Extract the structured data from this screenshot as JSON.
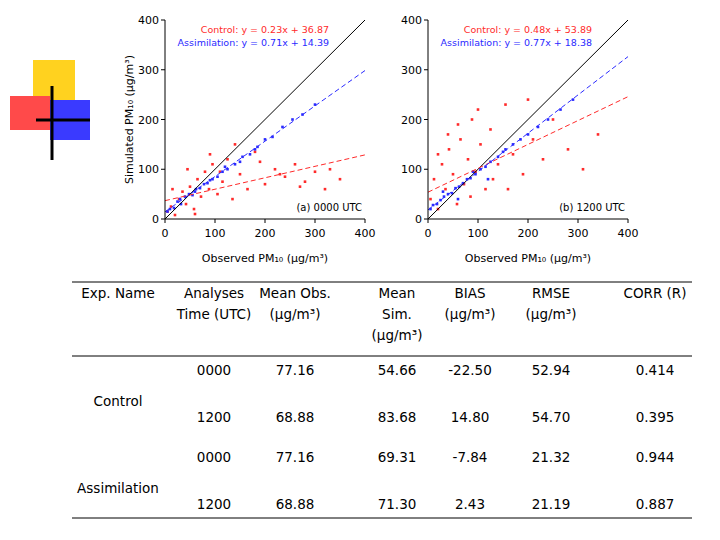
{
  "chart_data": [
    {
      "type": "scatter",
      "x_label": "Observed PM₁₀ (μg/m³)",
      "y_label": "Simulated PM₁₀ (μg/m³)",
      "annotation": "(a) 0000 UTC",
      "xlim": [
        0,
        400
      ],
      "ylim": [
        0,
        400
      ],
      "xticks": [
        0,
        100,
        200,
        300,
        400
      ],
      "yticks": [
        0,
        100,
        200,
        300,
        400
      ],
      "series": [
        {
          "color": "#ff2a2a",
          "marker": "square",
          "x": [
            5,
            12,
            20,
            28,
            35,
            42,
            50,
            58,
            65,
            72,
            80,
            88,
            95,
            105,
            115,
            125,
            135,
            150,
            165,
            180,
            200,
            220,
            240,
            260,
            280,
            300,
            320,
            350,
            15,
            45,
            60,
            90,
            110,
            140,
            190,
            230,
            270,
            330
          ],
          "values": [
            15,
            25,
            8,
            40,
            55,
            30,
            65,
            20,
            80,
            45,
            95,
            60,
            110,
            50,
            75,
            120,
            40,
            90,
            60,
            135,
            70,
            100,
            85,
            110,
            75,
            95,
            60,
            80,
            60,
            100,
            10,
            130,
            95,
            150,
            115,
            90,
            65,
            100
          ]
        },
        {
          "color": "#2a2aff",
          "marker": "square",
          "x": [
            5,
            10,
            18,
            25,
            32,
            40,
            48,
            55,
            62,
            70,
            78,
            85,
            95,
            105,
            115,
            125,
            140,
            155,
            170,
            185,
            200,
            215,
            235,
            255,
            275,
            300,
            30,
            60,
            90,
            120,
            150,
            180
          ],
          "values": [
            15,
            20,
            22,
            35,
            30,
            45,
            50,
            48,
            60,
            62,
            70,
            72,
            80,
            85,
            95,
            100,
            110,
            125,
            130,
            145,
            160,
            165,
            185,
            200,
            210,
            230,
            40,
            55,
            78,
            105,
            115,
            140
          ]
        },
        {
          "type": "line",
          "color": "#000000",
          "x": [
            0,
            400
          ],
          "values": [
            0,
            400
          ]
        },
        {
          "type": "line",
          "name": "Control: y = 0.23x + 36.87",
          "color": "#ff2a2a",
          "line_style": "dashed",
          "x": [
            0,
            400
          ],
          "values": [
            36.87,
            128.87
          ]
        },
        {
          "type": "line",
          "name": "Assimilation: y = 0.71x + 14.39",
          "color": "#2a2aff",
          "line_style": "dashed",
          "x": [
            0,
            400
          ],
          "values": [
            14.39,
            298.39
          ]
        }
      ]
    },
    {
      "type": "scatter",
      "x_label": "Observed PM₁₀ (μg/m³)",
      "annotation": "(b) 1200 UTC",
      "xlim": [
        0,
        400
      ],
      "ylim": [
        0,
        400
      ],
      "xticks": [
        0,
        100,
        200,
        300,
        400
      ],
      "yticks": [
        0,
        100,
        200,
        300,
        400
      ],
      "series": [
        {
          "color": "#ff2a2a",
          "marker": "square",
          "x": [
            5,
            12,
            20,
            28,
            35,
            42,
            50,
            58,
            65,
            72,
            80,
            88,
            95,
            105,
            115,
            125,
            140,
            155,
            170,
            190,
            210,
            230,
            250,
            280,
            310,
            340,
            20,
            40,
            60,
            85,
            100,
            130,
            160,
            200
          ],
          "values": [
            40,
            80,
            20,
            110,
            60,
            140,
            90,
            30,
            160,
            70,
            120,
            200,
            95,
            150,
            60,
            180,
            110,
            230,
            130,
            90,
            160,
            120,
            200,
            140,
            100,
            170,
            130,
            170,
            190,
            45,
            220,
            80,
            60,
            240
          ]
        },
        {
          "color": "#2a2aff",
          "marker": "square",
          "x": [
            5,
            10,
            18,
            25,
            32,
            40,
            48,
            55,
            62,
            70,
            78,
            85,
            95,
            105,
            115,
            125,
            140,
            155,
            170,
            185,
            200,
            220,
            240,
            265,
            290,
            30,
            60,
            90,
            120,
            150
          ],
          "values": [
            20,
            28,
            30,
            38,
            45,
            50,
            52,
            62,
            65,
            72,
            80,
            82,
            90,
            100,
            105,
            115,
            125,
            140,
            150,
            160,
            170,
            185,
            200,
            220,
            240,
            55,
            40,
            95,
            80,
            135
          ]
        },
        {
          "type": "line",
          "color": "#000000",
          "x": [
            0,
            400
          ],
          "values": [
            0,
            400
          ]
        },
        {
          "type": "line",
          "name": "Control: y = 0.48x + 53.89",
          "color": "#ff2a2a",
          "line_style": "dashed",
          "x": [
            0,
            400
          ],
          "values": [
            53.89,
            245.89
          ]
        },
        {
          "type": "line",
          "name": "Assimilation: y = 0.77x + 18.38",
          "color": "#2a2aff",
          "line_style": "dashed",
          "x": [
            0,
            400
          ],
          "values": [
            18.38,
            326.38
          ]
        }
      ]
    }
  ],
  "table": {
    "columns": [
      [
        "Exp. Name"
      ],
      [
        "Analyses",
        "Time (UTC)"
      ],
      [
        "Mean Obs.",
        "(μg/m³)"
      ],
      [
        "Mean",
        "Sim.",
        "(μg/m³)"
      ],
      [
        "BIAS",
        "(μg/m³)"
      ],
      [
        "RMSE",
        "(μg/m³)"
      ],
      [
        "CORR (R)"
      ]
    ],
    "groups": [
      {
        "name": "Control",
        "rows": [
          [
            "0000",
            "77.16",
            "54.66",
            "-22.50",
            "52.94",
            "0.414"
          ],
          [
            "1200",
            "68.88",
            "83.68",
            "14.80",
            "54.70",
            "0.395"
          ]
        ]
      },
      {
        "name": "Assimilation",
        "rows": [
          [
            "0000",
            "77.16",
            "69.31",
            "-7.84",
            "21.32",
            "0.944"
          ],
          [
            "1200",
            "68.88",
            "71.30",
            "2.43",
            "21.19",
            "0.887"
          ]
        ]
      }
    ]
  }
}
